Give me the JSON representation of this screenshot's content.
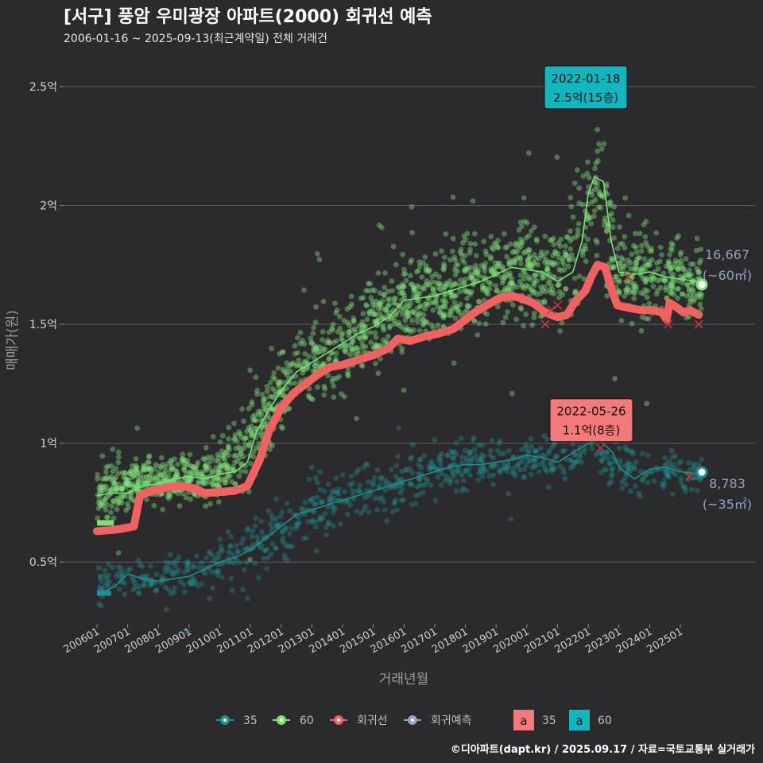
{
  "title": "[서구] 풍암 우미광장 아파트(2000) 회귀선 예측",
  "subtitle": "2006-01-16 ~ 2025-09-13(최근계약일) 전체 거래건",
  "caption": "©디아파트(dapt.kr) / 2025.09.17 / 자료=국토교통부 실거래가",
  "colors": {
    "s35": "#1f8f8f",
    "s60": "#7fe07a",
    "regression": "#f26060",
    "forecast": "#8fa3c8",
    "box35": "#f47a7a",
    "box60": "#12b6bf"
  },
  "chart_data": {
    "type": "scatter",
    "xlabel": "거래년월",
    "ylabel": "매매가(원)",
    "ylim": [
      0.24,
      2.63
    ],
    "y_ticks": [
      {
        "value": 0.5,
        "label": "0.5억"
      },
      {
        "value": 1.0,
        "label": "1억"
      },
      {
        "value": 1.5,
        "label": "1.5억"
      },
      {
        "value": 2.0,
        "label": "2억"
      },
      {
        "value": 2.5,
        "label": "2.5억"
      }
    ],
    "x_ticks": [
      "200601",
      "200701",
      "200801",
      "200901",
      "201001",
      "201101",
      "201201",
      "201301",
      "201401",
      "201501",
      "201601",
      "201701",
      "201801",
      "201901",
      "202001",
      "202101",
      "202201",
      "202301",
      "202401",
      "202501"
    ],
    "series": [
      {
        "name": "60",
        "trend": [
          [
            2006.0,
            0.78
          ],
          [
            2006.5,
            0.79
          ],
          [
            2007.0,
            0.79
          ],
          [
            2007.5,
            0.82
          ],
          [
            2008.0,
            0.83
          ],
          [
            2008.5,
            0.85
          ],
          [
            2009.0,
            0.86
          ],
          [
            2009.5,
            0.85
          ],
          [
            2010.0,
            0.87
          ],
          [
            2010.5,
            0.88
          ],
          [
            2010.9,
            0.92
          ],
          [
            2011.2,
            1.05
          ],
          [
            2011.6,
            1.14
          ],
          [
            2012.0,
            1.22
          ],
          [
            2012.5,
            1.3
          ],
          [
            2013.0,
            1.34
          ],
          [
            2013.5,
            1.38
          ],
          [
            2014.0,
            1.42
          ],
          [
            2014.5,
            1.46
          ],
          [
            2015.0,
            1.49
          ],
          [
            2015.5,
            1.53
          ],
          [
            2016.0,
            1.6
          ],
          [
            2016.5,
            1.61
          ],
          [
            2017.0,
            1.62
          ],
          [
            2017.5,
            1.64
          ],
          [
            2018.0,
            1.66
          ],
          [
            2018.5,
            1.68
          ],
          [
            2019.0,
            1.71
          ],
          [
            2019.5,
            1.74
          ],
          [
            2020.0,
            1.73
          ],
          [
            2020.5,
            1.72
          ],
          [
            2021.0,
            1.68
          ],
          [
            2021.5,
            1.72
          ],
          [
            2021.8,
            1.85
          ],
          [
            2022.0,
            2.05
          ],
          [
            2022.2,
            2.12
          ],
          [
            2022.5,
            2.1
          ],
          [
            2022.75,
            1.85
          ],
          [
            2023.0,
            1.72
          ],
          [
            2023.5,
            1.71
          ],
          [
            2024.0,
            1.72
          ],
          [
            2024.5,
            1.7
          ],
          [
            2025.0,
            1.69
          ],
          [
            2025.6,
            1.68
          ]
        ],
        "cloud": [
          [
            2006.0,
            0.8,
            0.06
          ],
          [
            2007.0,
            0.82,
            0.05
          ],
          [
            2008.0,
            0.85,
            0.05
          ],
          [
            2009.0,
            0.86,
            0.05
          ],
          [
            2010.0,
            0.88,
            0.06
          ],
          [
            2011.0,
            1.0,
            0.1
          ],
          [
            2012.0,
            1.22,
            0.09
          ],
          [
            2013.0,
            1.34,
            0.09
          ],
          [
            2014.0,
            1.42,
            0.09
          ],
          [
            2015.0,
            1.5,
            0.09
          ],
          [
            2016.0,
            1.58,
            0.09
          ],
          [
            2017.0,
            1.62,
            0.09
          ],
          [
            2018.0,
            1.66,
            0.09
          ],
          [
            2019.0,
            1.72,
            0.08
          ],
          [
            2020.0,
            1.72,
            0.09
          ],
          [
            2021.0,
            1.7,
            0.1
          ],
          [
            2021.8,
            1.9,
            0.14
          ],
          [
            2022.2,
            2.1,
            0.12
          ],
          [
            2022.7,
            1.85,
            0.12
          ],
          [
            2023.0,
            1.72,
            0.09
          ],
          [
            2024.0,
            1.72,
            0.09
          ],
          [
            2025.0,
            1.69,
            0.08
          ],
          [
            2025.7,
            1.68,
            0.07
          ]
        ],
        "count": 1900
      },
      {
        "name": "35",
        "trend": [
          [
            2006.0,
            0.37
          ],
          [
            2006.3,
            0.38
          ],
          [
            2006.6,
            0.4
          ],
          [
            2007.0,
            0.45
          ],
          [
            2007.5,
            0.43
          ],
          [
            2008.0,
            0.42
          ],
          [
            2008.5,
            0.43
          ],
          [
            2009.0,
            0.44
          ],
          [
            2009.5,
            0.47
          ],
          [
            2010.0,
            0.5
          ],
          [
            2010.5,
            0.52
          ],
          [
            2011.0,
            0.55
          ],
          [
            2011.5,
            0.6
          ],
          [
            2012.0,
            0.65
          ],
          [
            2012.5,
            0.7
          ],
          [
            2013.0,
            0.72
          ],
          [
            2013.5,
            0.74
          ],
          [
            2014.0,
            0.76
          ],
          [
            2014.5,
            0.78
          ],
          [
            2015.0,
            0.8
          ],
          [
            2015.5,
            0.82
          ],
          [
            2016.0,
            0.84
          ],
          [
            2016.5,
            0.86
          ],
          [
            2017.0,
            0.88
          ],
          [
            2017.5,
            0.9
          ],
          [
            2018.0,
            0.91
          ],
          [
            2018.5,
            0.91
          ],
          [
            2019.0,
            0.92
          ],
          [
            2019.5,
            0.93
          ],
          [
            2020.0,
            0.95
          ],
          [
            2020.5,
            0.94
          ],
          [
            2021.0,
            0.92
          ],
          [
            2021.5,
            0.96
          ],
          [
            2022.0,
            1.0
          ],
          [
            2022.4,
            1.01
          ],
          [
            2022.8,
            0.96
          ],
          [
            2023.0,
            0.9
          ],
          [
            2023.5,
            0.85
          ],
          [
            2024.0,
            0.89
          ],
          [
            2024.5,
            0.9
          ],
          [
            2025.0,
            0.88
          ],
          [
            2025.6,
            0.87
          ]
        ],
        "cloud": [
          [
            2006.0,
            0.39,
            0.04
          ],
          [
            2007.0,
            0.44,
            0.04
          ],
          [
            2008.0,
            0.43,
            0.04
          ],
          [
            2009.0,
            0.45,
            0.04
          ],
          [
            2010.0,
            0.5,
            0.05
          ],
          [
            2011.0,
            0.55,
            0.06
          ],
          [
            2012.0,
            0.64,
            0.07
          ],
          [
            2013.0,
            0.72,
            0.06
          ],
          [
            2014.0,
            0.76,
            0.06
          ],
          [
            2015.0,
            0.8,
            0.06
          ],
          [
            2016.0,
            0.84,
            0.06
          ],
          [
            2017.0,
            0.88,
            0.06
          ],
          [
            2018.0,
            0.91,
            0.05
          ],
          [
            2019.0,
            0.92,
            0.05
          ],
          [
            2020.0,
            0.94,
            0.05
          ],
          [
            2021.0,
            0.93,
            0.05
          ],
          [
            2022.0,
            1.0,
            0.05
          ],
          [
            2023.0,
            0.88,
            0.05
          ],
          [
            2024.0,
            0.89,
            0.05
          ],
          [
            2025.0,
            0.88,
            0.04
          ],
          [
            2025.7,
            0.87,
            0.03
          ]
        ],
        "count": 800
      }
    ],
    "regression": {
      "name": "회귀선",
      "values": [
        [
          2006.0,
          0.63
        ],
        [
          2006.5,
          0.635
        ],
        [
          2006.8,
          0.64
        ],
        [
          2007.2,
          0.65
        ],
        [
          2007.4,
          0.78
        ],
        [
          2007.8,
          0.8
        ],
        [
          2008.3,
          0.815
        ],
        [
          2008.7,
          0.82
        ],
        [
          2009.2,
          0.81
        ],
        [
          2009.5,
          0.79
        ],
        [
          2010.0,
          0.795
        ],
        [
          2010.5,
          0.8
        ],
        [
          2010.9,
          0.82
        ],
        [
          2011.3,
          0.93
        ],
        [
          2011.6,
          1.05
        ],
        [
          2012.0,
          1.15
        ],
        [
          2012.4,
          1.21
        ],
        [
          2012.8,
          1.25
        ],
        [
          2013.2,
          1.29
        ],
        [
          2013.6,
          1.32
        ],
        [
          2014.0,
          1.33
        ],
        [
          2014.5,
          1.35
        ],
        [
          2015.0,
          1.37
        ],
        [
          2015.5,
          1.4
        ],
        [
          2015.8,
          1.44
        ],
        [
          2016.2,
          1.43
        ],
        [
          2016.7,
          1.45
        ],
        [
          2017.1,
          1.46
        ],
        [
          2017.6,
          1.48
        ],
        [
          2017.9,
          1.51
        ],
        [
          2018.3,
          1.55
        ],
        [
          2018.7,
          1.58
        ],
        [
          2019.1,
          1.61
        ],
        [
          2019.5,
          1.62
        ],
        [
          2019.8,
          1.61
        ],
        [
          2020.2,
          1.59
        ],
        [
          2020.6,
          1.55
        ],
        [
          2021.0,
          1.53
        ],
        [
          2021.3,
          1.54
        ],
        [
          2021.6,
          1.6
        ],
        [
          2021.9,
          1.64
        ],
        [
          2022.1,
          1.7
        ],
        [
          2022.3,
          1.75
        ],
        [
          2022.55,
          1.74
        ],
        [
          2022.75,
          1.65
        ],
        [
          2022.95,
          1.58
        ],
        [
          2023.3,
          1.57
        ],
        [
          2023.7,
          1.56
        ],
        [
          2024.1,
          1.56
        ],
        [
          2024.4,
          1.55
        ],
        [
          2024.55,
          1.52
        ],
        [
          2024.65,
          1.59
        ],
        [
          2024.9,
          1.57
        ],
        [
          2025.1,
          1.55
        ],
        [
          2025.3,
          1.56
        ],
        [
          2025.6,
          1.54
        ]
      ]
    },
    "start_bars": [
      {
        "series": "60",
        "x0": 2006.0,
        "x1": 2006.55,
        "y": 0.665
      },
      {
        "series": "35",
        "x0": 2006.0,
        "x1": 2006.45,
        "y": 0.37
      }
    ],
    "crosses": [
      [
        2020.6,
        1.5
      ],
      [
        2020.8,
        1.56
      ],
      [
        2021.0,
        1.58
      ],
      [
        2023.3,
        1.7
      ],
      [
        2024.6,
        1.5
      ],
      [
        2025.6,
        1.5
      ],
      [
        2022.4,
        0.98
      ],
      [
        2025.3,
        0.86
      ]
    ],
    "end_points": [
      {
        "series": "60",
        "x": 2025.7,
        "y": 1.667,
        "value": "16,667",
        "size": "(~60㎡)"
      },
      {
        "series": "35",
        "x": 2025.7,
        "y": 0.8783,
        "value": "8,783",
        "size": "(~35㎡)"
      }
    ],
    "annotations": [
      {
        "series": "60",
        "date": "2022-01-18",
        "text": "2.5억(15층)",
        "x": 2021.92,
        "y": 2.5
      },
      {
        "series": "35",
        "date": "2022-05-26",
        "text": "1.1억(8층)",
        "x": 2022.1,
        "y": 1.1
      }
    ],
    "legend": {
      "placement": "bottom",
      "items": [
        {
          "key": "35",
          "label": "35"
        },
        {
          "key": "60",
          "label": "60"
        },
        {
          "key": "reg",
          "label": "회귀선"
        },
        {
          "key": "fc",
          "label": "회귀예측"
        }
      ],
      "box_items": [
        {
          "key": "35",
          "glyph": "a",
          "label": "35"
        },
        {
          "key": "60",
          "glyph": "a",
          "label": "60"
        }
      ]
    }
  }
}
